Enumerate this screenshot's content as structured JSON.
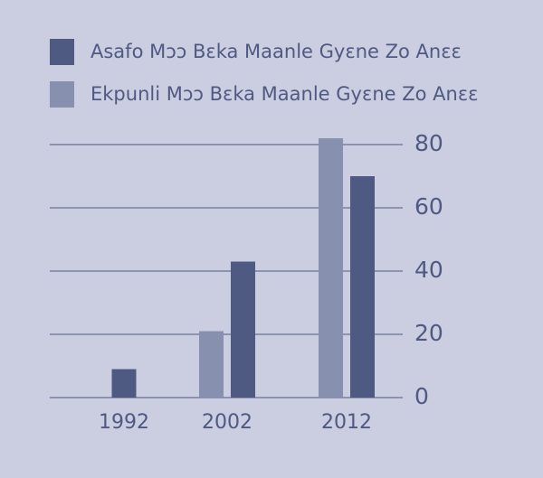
{
  "chart_data": {
    "type": "bar",
    "categories": [
      "1992",
      "2002",
      "2012"
    ],
    "series": [
      {
        "name": "Asafo Mɔɔ Bɛka Maanle Gyɛne Zo Anɛɛ",
        "color": "#4f5a82",
        "values": [
          9,
          43,
          70
        ]
      },
      {
        "name": "Ekpunli Mɔɔ Bɛka Maanle Gyɛne Zo Anɛɛ",
        "color": "#8890b0",
        "values": [
          null,
          21,
          82
        ]
      }
    ],
    "ylim": [
      0,
      80
    ],
    "yticks": [
      0,
      20,
      40,
      60,
      80
    ],
    "grid": true
  }
}
